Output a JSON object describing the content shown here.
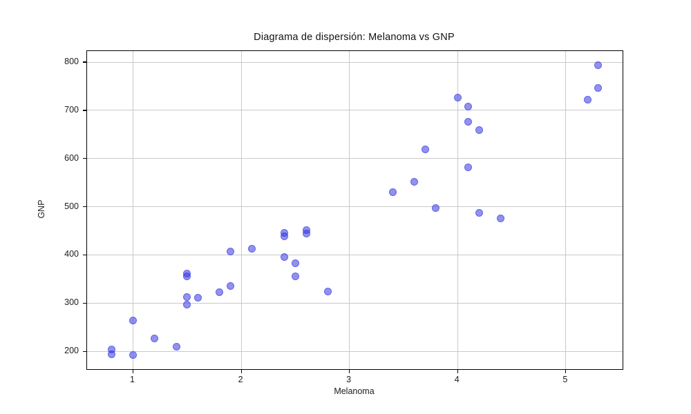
{
  "chart_data": {
    "type": "scatter",
    "title": "Diagrama de dispersión: Melanoma vs GNP",
    "xlabel": "Melanoma",
    "ylabel": "GNP",
    "x_ticks": [
      1,
      2,
      3,
      4,
      5
    ],
    "y_ticks": [
      200,
      300,
      400,
      500,
      600,
      700,
      800
    ],
    "xlim": [
      0.575,
      5.525
    ],
    "ylim": [
      163,
      823
    ],
    "grid": true,
    "marker_color": "#6666ff",
    "marker_alpha": 0.6,
    "points": [
      [
        0.8,
        204
      ],
      [
        0.8,
        194
      ],
      [
        1.0,
        264
      ],
      [
        1.0,
        193
      ],
      [
        1.2,
        227
      ],
      [
        1.4,
        210
      ],
      [
        1.5,
        362
      ],
      [
        1.5,
        355
      ],
      [
        1.5,
        313
      ],
      [
        1.5,
        297
      ],
      [
        1.6,
        311
      ],
      [
        1.8,
        323
      ],
      [
        1.9,
        407
      ],
      [
        1.9,
        336
      ],
      [
        2.1,
        413
      ],
      [
        2.4,
        446
      ],
      [
        2.4,
        438
      ],
      [
        2.4,
        395
      ],
      [
        2.5,
        383
      ],
      [
        2.5,
        356
      ],
      [
        2.6,
        452
      ],
      [
        2.6,
        445
      ],
      [
        2.8,
        324
      ],
      [
        3.4,
        530
      ],
      [
        3.6,
        552
      ],
      [
        3.7,
        619
      ],
      [
        3.8,
        497
      ],
      [
        4.0,
        726
      ],
      [
        4.1,
        708
      ],
      [
        4.1,
        676
      ],
      [
        4.1,
        582
      ],
      [
        4.2,
        659
      ],
      [
        4.2,
        487
      ],
      [
        4.4,
        476
      ],
      [
        5.2,
        722
      ],
      [
        5.3,
        793
      ],
      [
        5.3,
        747
      ]
    ]
  }
}
